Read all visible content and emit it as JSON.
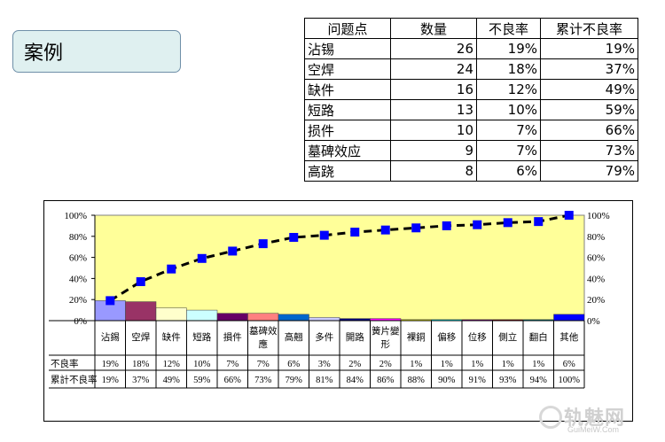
{
  "header": {
    "title": "案例"
  },
  "table": {
    "headers": [
      "问题点",
      "数量",
      "不良率",
      "累计不良率"
    ],
    "rows": [
      [
        "沾锡",
        "26",
        "19%",
        "19%"
      ],
      [
        "空焊",
        "24",
        "18%",
        "37%"
      ],
      [
        "缺件",
        "16",
        "12%",
        "49%"
      ],
      [
        "短路",
        "13",
        "10%",
        "59%"
      ],
      [
        "损件",
        "10",
        "7%",
        "66%"
      ],
      [
        "墓碑效应",
        "9",
        "7%",
        "73%"
      ],
      [
        "高跷",
        "8",
        "6%",
        "79%"
      ]
    ]
  },
  "chart_data": {
    "type": "bar",
    "categories": [
      "沾錫",
      "空焊",
      "缺件",
      "短路",
      "損件",
      "墓碑效應",
      "高翹",
      "多件",
      "開路",
      "簧片變形",
      "裸銅",
      "偏移",
      "位移",
      "側立",
      "翻白",
      "其他"
    ],
    "series": [
      {
        "name": "不良率",
        "type": "bar",
        "values": [
          19,
          18,
          12,
          10,
          7,
          7,
          6,
          3,
          2,
          2,
          1,
          1,
          1,
          1,
          1,
          6
        ]
      },
      {
        "name": "累計不良率",
        "type": "line",
        "values": [
          19,
          37,
          49,
          59,
          66,
          73,
          79,
          81,
          84,
          86,
          88,
          90,
          91,
          93,
          94,
          100
        ]
      }
    ],
    "ylim": [
      0,
      100
    ],
    "yticks": [
      "0%",
      "20%",
      "40%",
      "60%",
      "80%",
      "100%"
    ],
    "row_labels": [
      "不良率",
      "累計不良率"
    ],
    "bar_row": [
      "19%",
      "18%",
      "12%",
      "10%",
      "7%",
      "7%",
      "6%",
      "3%",
      "2%",
      "2%",
      "1%",
      "1%",
      "1%",
      "1%",
      "1%",
      "6%"
    ],
    "cum_row": [
      "19%",
      "37%",
      "49%",
      "59%",
      "66%",
      "73%",
      "79%",
      "81%",
      "84%",
      "86%",
      "88%",
      "90%",
      "91%",
      "93%",
      "94%",
      "100%"
    ],
    "colors": {
      "plot_bg": "#ffff99",
      "line": "#000000",
      "marker": "#0000ff",
      "bars": [
        "#9999ff",
        "#993366",
        "#ffffcc",
        "#ccffff",
        "#660066",
        "#ff8080",
        "#0066cc",
        "#ccccff",
        "#000080",
        "#ff00ff",
        "#ffff00",
        "#00ffff",
        "#800080",
        "#800000",
        "#008080",
        "#0000ff"
      ]
    }
  },
  "watermark": {
    "text": "轨魅网",
    "sub": "GuiMeiW.Com"
  }
}
